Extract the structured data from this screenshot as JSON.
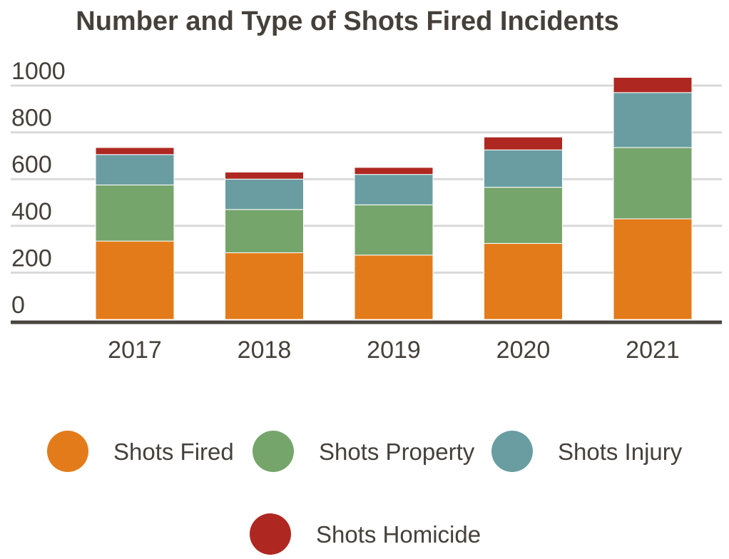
{
  "chart_data": {
    "type": "bar",
    "stacked": true,
    "title": "Number and Type of Shots Fired Incidents",
    "xlabel": "",
    "ylabel": "",
    "categories": [
      "2017",
      "2018",
      "2019",
      "2020",
      "2021"
    ],
    "ylim": [
      0,
      1000
    ],
    "yticks": [
      0,
      200,
      400,
      600,
      800,
      1000
    ],
    "grid": true,
    "legend_position": "bottom",
    "series": [
      {
        "name": "Shots Fired",
        "color": "#e37b1b",
        "values": [
          335,
          285,
          275,
          325,
          430
        ]
      },
      {
        "name": "Shots Property",
        "color": "#76a56b",
        "values": [
          240,
          185,
          215,
          240,
          305
        ]
      },
      {
        "name": "Shots Injury",
        "color": "#6a9da2",
        "values": [
          130,
          130,
          130,
          160,
          235
        ]
      },
      {
        "name": "Shots Homicide",
        "color": "#ae2821",
        "values": [
          30,
          30,
          30,
          55,
          65
        ]
      }
    ]
  }
}
